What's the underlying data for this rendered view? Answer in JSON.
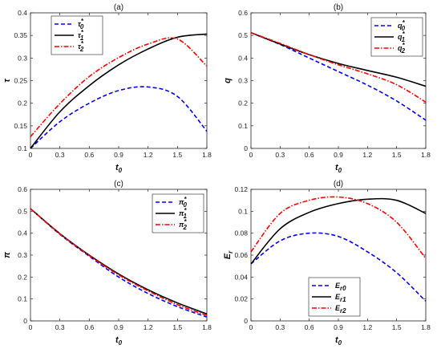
{
  "chart_data": [
    {
      "type": "line",
      "title": "(a)",
      "xlabel": "t0",
      "ylabel": "τ",
      "xlim": [
        0,
        1.8
      ],
      "ylim": [
        0.1,
        0.4
      ],
      "xticks": [
        "0",
        "0.3",
        "0.6",
        "0.9",
        "1.2",
        "1.5",
        "1.8"
      ],
      "yticks": [
        "0.1",
        "0.15",
        "0.2",
        "0.25",
        "0.3",
        "0.35",
        "0.4"
      ],
      "legend_position": "top-left",
      "x": [
        0,
        0.3,
        0.6,
        0.9,
        1.2,
        1.5,
        1.8
      ],
      "series": [
        {
          "name": "τ*0",
          "color": "#0000ff",
          "dash": "dashed",
          "values": [
            0.1,
            0.159,
            0.2,
            0.228,
            0.236,
            0.215,
            0.138
          ]
        },
        {
          "name": "τ*1",
          "color": "#000000",
          "dash": "solid",
          "values": [
            0.1,
            0.181,
            0.239,
            0.285,
            0.32,
            0.346,
            0.353
          ]
        },
        {
          "name": "τ*2",
          "color": "#ff0000",
          "dash": "dashdot",
          "values": [
            0.126,
            0.199,
            0.259,
            0.301,
            0.331,
            0.342,
            0.282
          ]
        }
      ]
    },
    {
      "type": "line",
      "title": "(b)",
      "xlabel": "t0",
      "ylabel": "q",
      "xlim": [
        0,
        1.8
      ],
      "ylim": [
        0,
        0.6
      ],
      "xticks": [
        "0",
        "0.3",
        "0.6",
        "0.9",
        "1.2",
        "1.5",
        "1.8"
      ],
      "yticks": [
        "0",
        "0.1",
        "0.2",
        "0.3",
        "0.4",
        "0.5",
        "0.6"
      ],
      "legend_position": "top-right",
      "x": [
        0,
        0.3,
        0.6,
        0.9,
        1.2,
        1.5,
        1.8
      ],
      "series": [
        {
          "name": "q*0",
          "color": "#0000ff",
          "dash": "dashed",
          "values": [
            0.512,
            0.46,
            0.4,
            0.34,
            0.28,
            0.21,
            0.125
          ]
        },
        {
          "name": "q*1",
          "color": "#000000",
          "dash": "solid",
          "values": [
            0.512,
            0.462,
            0.415,
            0.376,
            0.345,
            0.315,
            0.275
          ]
        },
        {
          "name": "q*2",
          "color": "#ff0000",
          "dash": "dashdot",
          "values": [
            0.512,
            0.465,
            0.415,
            0.37,
            0.33,
            0.282,
            0.205
          ]
        }
      ]
    },
    {
      "type": "line",
      "title": "(c)",
      "xlabel": "t0",
      "ylabel": "π",
      "xlim": [
        0,
        1.8
      ],
      "ylim": [
        0,
        0.6
      ],
      "xticks": [
        "0",
        "0.3",
        "0.6",
        "0.9",
        "1.2",
        "1.5",
        "1.8"
      ],
      "yticks": [
        "0",
        "0.1",
        "0.2",
        "0.3",
        "0.4",
        "0.5",
        "0.6"
      ],
      "legend_position": "top-right",
      "x": [
        0,
        0.3,
        0.6,
        0.9,
        1.2,
        1.5,
        1.8
      ],
      "series": [
        {
          "name": "π*0",
          "color": "#0000ff",
          "dash": "dashed",
          "values": [
            0.512,
            0.395,
            0.295,
            0.2,
            0.125,
            0.065,
            0.018
          ]
        },
        {
          "name": "π*1",
          "color": "#000000",
          "dash": "solid",
          "values": [
            0.512,
            0.398,
            0.3,
            0.214,
            0.142,
            0.082,
            0.032
          ]
        },
        {
          "name": "π*2",
          "color": "#ff0000",
          "dash": "dashdot",
          "values": [
            0.512,
            0.397,
            0.298,
            0.21,
            0.137,
            0.074,
            0.025
          ]
        }
      ]
    },
    {
      "type": "line",
      "title": "(d)",
      "xlabel": "t0",
      "ylabel": "Er",
      "xlim": [
        0,
        1.8
      ],
      "ylim": [
        0,
        0.12
      ],
      "xticks": [
        "0",
        "0.3",
        "0.6",
        "0.9",
        "1.2",
        "1.5",
        "1.8"
      ],
      "yticks": [
        "0",
        "0.02",
        "0.04",
        "0.06",
        "0.08",
        "0.1",
        "0.12"
      ],
      "legend_position": "bottom-left",
      "x": [
        0,
        0.3,
        0.6,
        0.9,
        1.2,
        1.5,
        1.8
      ],
      "series": [
        {
          "name": "Er0",
          "color": "#0000ff",
          "dash": "dashed",
          "values": [
            0.052,
            0.073,
            0.08,
            0.077,
            0.063,
            0.044,
            0.018
          ]
        },
        {
          "name": "Er1",
          "color": "#000000",
          "dash": "solid",
          "values": [
            0.052,
            0.084,
            0.099,
            0.107,
            0.111,
            0.11,
            0.098
          ]
        },
        {
          "name": "Er2",
          "color": "#ff0000",
          "dash": "dashdot",
          "values": [
            0.063,
            0.098,
            0.11,
            0.113,
            0.107,
            0.09,
            0.057
          ]
        }
      ]
    }
  ]
}
